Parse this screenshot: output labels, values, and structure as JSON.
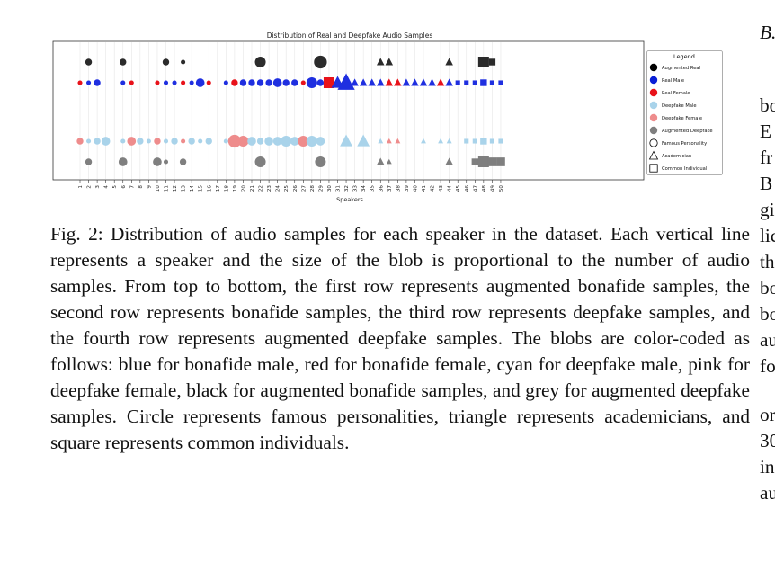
{
  "figure": {
    "number_label": "Fig. 2:",
    "caption": "Distribution of audio samples for each speaker in the dataset. Each vertical line represents a speaker and the size of the blob is proportional to the number of audio samples. From top to bottom, the first row represents augmented bonafide samples, the second row represents bonafide samples, the third row represents deepfake samples, and the fourth row represents augmented deepfake samples. The blobs are color-coded as follows: blue for bonafide male, red for bonafide female, cyan for deepfake male, pink for deepfake female, black for augmented bonafide samples, and grey for augmented deepfake samples. Circle represents famous personalities, triangle represents academicians, and square represents common individuals."
  },
  "chart_data": {
    "type": "scatter",
    "title": "Distribution of Real and Deepfake Audio Samples",
    "xlabel": "Speakers",
    "ylabel": "",
    "x_ticks": [
      "1",
      "2",
      "3",
      "4",
      "5",
      "6",
      "7",
      "8",
      "9",
      "10",
      "11",
      "12",
      "13",
      "14",
      "15",
      "16",
      "17",
      "18",
      "19",
      "20",
      "21",
      "22",
      "23",
      "24",
      "25",
      "26",
      "27",
      "28",
      "29",
      "30",
      "31",
      "32",
      "33",
      "34",
      "35",
      "36",
      "37",
      "38",
      "39",
      "40",
      "41",
      "42",
      "43",
      "44",
      "45",
      "46",
      "47",
      "48",
      "49",
      "50"
    ],
    "rows": [
      "Augmented Real",
      "Real",
      "Deepfake",
      "Augmented Deepfake"
    ],
    "legend": {
      "title": "Legend",
      "entries": [
        {
          "label": "Augmented Real",
          "color": "#000000",
          "marker": "circle"
        },
        {
          "label": "Real Male",
          "color": "#0a1fd6",
          "marker": "circle"
        },
        {
          "label": "Real Female",
          "color": "#e8121a",
          "marker": "circle"
        },
        {
          "label": "Deepfake Male",
          "color": "#a9d3ea",
          "marker": "circle"
        },
        {
          "label": "Deepfake Female",
          "color": "#ee8c8c",
          "marker": "circle"
        },
        {
          "label": "Augmented Deepfake",
          "color": "#7f7f7f",
          "marker": "circle"
        },
        {
          "label": "Famous Personality",
          "color": "#000000",
          "marker": "circle-outline"
        },
        {
          "label": "Academician",
          "color": "#000000",
          "marker": "triangle-outline"
        },
        {
          "label": "Common Individual",
          "color": "#000000",
          "marker": "square-outline"
        }
      ],
      "placement": "right"
    },
    "colors": {
      "aug_real": "#2b2b2b",
      "real_male": "#1f2fe0",
      "real_female": "#e8121a",
      "df_male": "#a9d3ea",
      "df_female": "#ee8c8c",
      "aug_df": "#7f7f7f"
    },
    "points": [
      {
        "row": 0,
        "x": 2,
        "size": 2,
        "cat": "aug_real",
        "marker": "circle"
      },
      {
        "row": 0,
        "x": 6,
        "size": 2,
        "cat": "aug_real",
        "marker": "circle"
      },
      {
        "row": 0,
        "x": 11,
        "size": 2,
        "cat": "aug_real",
        "marker": "circle"
      },
      {
        "row": 0,
        "x": 13,
        "size": 1,
        "cat": "aug_real",
        "marker": "circle"
      },
      {
        "row": 0,
        "x": 22,
        "size": 4,
        "cat": "aug_real",
        "marker": "circle"
      },
      {
        "row": 0,
        "x": 29,
        "size": 5,
        "cat": "aug_real",
        "marker": "circle"
      },
      {
        "row": 0,
        "x": 36,
        "size": 2,
        "cat": "aug_real",
        "marker": "triangle"
      },
      {
        "row": 0,
        "x": 37,
        "size": 2,
        "cat": "aug_real",
        "marker": "triangle"
      },
      {
        "row": 0,
        "x": 44,
        "size": 2,
        "cat": "aug_real",
        "marker": "triangle"
      },
      {
        "row": 0,
        "x": 48,
        "size": 4,
        "cat": "aug_real",
        "marker": "square"
      },
      {
        "row": 0,
        "x": 49,
        "size": 2,
        "cat": "aug_real",
        "marker": "square"
      },
      {
        "row": 1,
        "x": 1,
        "size": 1,
        "cat": "real_female",
        "marker": "circle"
      },
      {
        "row": 1,
        "x": 2,
        "size": 1,
        "cat": "real_male",
        "marker": "circle"
      },
      {
        "row": 1,
        "x": 3,
        "size": 2,
        "cat": "real_male",
        "marker": "circle"
      },
      {
        "row": 1,
        "x": 6,
        "size": 1,
        "cat": "real_male",
        "marker": "circle"
      },
      {
        "row": 1,
        "x": 7,
        "size": 1,
        "cat": "real_female",
        "marker": "circle"
      },
      {
        "row": 1,
        "x": 10,
        "size": 1,
        "cat": "real_female",
        "marker": "circle"
      },
      {
        "row": 1,
        "x": 11,
        "size": 1,
        "cat": "real_male",
        "marker": "circle"
      },
      {
        "row": 1,
        "x": 12,
        "size": 1,
        "cat": "real_male",
        "marker": "circle"
      },
      {
        "row": 1,
        "x": 13,
        "size": 1,
        "cat": "real_female",
        "marker": "circle"
      },
      {
        "row": 1,
        "x": 14,
        "size": 1,
        "cat": "real_male",
        "marker": "circle"
      },
      {
        "row": 1,
        "x": 15,
        "size": 3,
        "cat": "real_male",
        "marker": "circle"
      },
      {
        "row": 1,
        "x": 16,
        "size": 1,
        "cat": "real_female",
        "marker": "circle"
      },
      {
        "row": 1,
        "x": 18,
        "size": 1,
        "cat": "real_male",
        "marker": "circle"
      },
      {
        "row": 1,
        "x": 19,
        "size": 2,
        "cat": "real_female",
        "marker": "circle"
      },
      {
        "row": 1,
        "x": 20,
        "size": 2,
        "cat": "real_male",
        "marker": "circle"
      },
      {
        "row": 1,
        "x": 21,
        "size": 2,
        "cat": "real_male",
        "marker": "circle"
      },
      {
        "row": 1,
        "x": 22,
        "size": 2,
        "cat": "real_male",
        "marker": "circle"
      },
      {
        "row": 1,
        "x": 23,
        "size": 2,
        "cat": "real_male",
        "marker": "circle"
      },
      {
        "row": 1,
        "x": 24,
        "size": 3,
        "cat": "real_male",
        "marker": "circle"
      },
      {
        "row": 1,
        "x": 25,
        "size": 2,
        "cat": "real_male",
        "marker": "circle"
      },
      {
        "row": 1,
        "x": 26,
        "size": 2,
        "cat": "real_male",
        "marker": "circle"
      },
      {
        "row": 1,
        "x": 27,
        "size": 1,
        "cat": "real_female",
        "marker": "circle"
      },
      {
        "row": 1,
        "x": 28,
        "size": 4,
        "cat": "real_male",
        "marker": "circle"
      },
      {
        "row": 1,
        "x": 29,
        "size": 2,
        "cat": "real_male",
        "marker": "circle"
      },
      {
        "row": 1,
        "x": 30,
        "size": 4,
        "cat": "real_female",
        "marker": "square"
      },
      {
        "row": 1,
        "x": 31,
        "size": 4,
        "cat": "real_male",
        "marker": "triangle"
      },
      {
        "row": 1,
        "x": 32,
        "size": 6,
        "cat": "real_male",
        "marker": "triangle"
      },
      {
        "row": 1,
        "x": 33,
        "size": 2,
        "cat": "real_male",
        "marker": "triangle"
      },
      {
        "row": 1,
        "x": 34,
        "size": 2,
        "cat": "real_male",
        "marker": "triangle"
      },
      {
        "row": 1,
        "x": 35,
        "size": 2,
        "cat": "real_male",
        "marker": "triangle"
      },
      {
        "row": 1,
        "x": 36,
        "size": 2,
        "cat": "real_male",
        "marker": "triangle"
      },
      {
        "row": 1,
        "x": 37,
        "size": 2,
        "cat": "real_female",
        "marker": "triangle"
      },
      {
        "row": 1,
        "x": 38,
        "size": 2,
        "cat": "real_female",
        "marker": "triangle"
      },
      {
        "row": 1,
        "x": 39,
        "size": 2,
        "cat": "real_male",
        "marker": "triangle"
      },
      {
        "row": 1,
        "x": 40,
        "size": 2,
        "cat": "real_male",
        "marker": "triangle"
      },
      {
        "row": 1,
        "x": 41,
        "size": 2,
        "cat": "real_male",
        "marker": "triangle"
      },
      {
        "row": 1,
        "x": 42,
        "size": 2,
        "cat": "real_male",
        "marker": "triangle"
      },
      {
        "row": 1,
        "x": 43,
        "size": 2,
        "cat": "real_female",
        "marker": "triangle"
      },
      {
        "row": 1,
        "x": 44,
        "size": 2,
        "cat": "real_male",
        "marker": "triangle"
      },
      {
        "row": 1,
        "x": 45,
        "size": 1,
        "cat": "real_male",
        "marker": "square"
      },
      {
        "row": 1,
        "x": 46,
        "size": 1,
        "cat": "real_male",
        "marker": "square"
      },
      {
        "row": 1,
        "x": 47,
        "size": 1,
        "cat": "real_male",
        "marker": "square"
      },
      {
        "row": 1,
        "x": 48,
        "size": 2,
        "cat": "real_male",
        "marker": "square"
      },
      {
        "row": 1,
        "x": 49,
        "size": 1,
        "cat": "real_male",
        "marker": "square"
      },
      {
        "row": 1,
        "x": 50,
        "size": 1,
        "cat": "real_male",
        "marker": "square"
      },
      {
        "row": 2,
        "x": 1,
        "size": 2,
        "cat": "df_female",
        "marker": "circle"
      },
      {
        "row": 2,
        "x": 2,
        "size": 1,
        "cat": "df_male",
        "marker": "circle"
      },
      {
        "row": 2,
        "x": 3,
        "size": 2,
        "cat": "df_male",
        "marker": "circle"
      },
      {
        "row": 2,
        "x": 4,
        "size": 3,
        "cat": "df_male",
        "marker": "circle"
      },
      {
        "row": 2,
        "x": 6,
        "size": 1,
        "cat": "df_male",
        "marker": "circle"
      },
      {
        "row": 2,
        "x": 7,
        "size": 3,
        "cat": "df_female",
        "marker": "circle"
      },
      {
        "row": 2,
        "x": 8,
        "size": 2,
        "cat": "df_male",
        "marker": "circle"
      },
      {
        "row": 2,
        "x": 9,
        "size": 1,
        "cat": "df_male",
        "marker": "circle"
      },
      {
        "row": 2,
        "x": 10,
        "size": 2,
        "cat": "df_female",
        "marker": "circle"
      },
      {
        "row": 2,
        "x": 11,
        "size": 1,
        "cat": "df_male",
        "marker": "circle"
      },
      {
        "row": 2,
        "x": 12,
        "size": 2,
        "cat": "df_male",
        "marker": "circle"
      },
      {
        "row": 2,
        "x": 13,
        "size": 1,
        "cat": "df_female",
        "marker": "circle"
      },
      {
        "row": 2,
        "x": 14,
        "size": 2,
        "cat": "df_male",
        "marker": "circle"
      },
      {
        "row": 2,
        "x": 15,
        "size": 1,
        "cat": "df_male",
        "marker": "circle"
      },
      {
        "row": 2,
        "x": 16,
        "size": 2,
        "cat": "df_male",
        "marker": "circle"
      },
      {
        "row": 2,
        "x": 18,
        "size": 1,
        "cat": "df_male",
        "marker": "circle"
      },
      {
        "row": 2,
        "x": 19,
        "size": 5,
        "cat": "df_female",
        "marker": "circle"
      },
      {
        "row": 2,
        "x": 20,
        "size": 4,
        "cat": "df_female",
        "marker": "circle"
      },
      {
        "row": 2,
        "x": 21,
        "size": 3,
        "cat": "df_male",
        "marker": "circle"
      },
      {
        "row": 2,
        "x": 22,
        "size": 2,
        "cat": "df_male",
        "marker": "circle"
      },
      {
        "row": 2,
        "x": 23,
        "size": 3,
        "cat": "df_male",
        "marker": "circle"
      },
      {
        "row": 2,
        "x": 24,
        "size": 3,
        "cat": "df_male",
        "marker": "circle"
      },
      {
        "row": 2,
        "x": 25,
        "size": 4,
        "cat": "df_male",
        "marker": "circle"
      },
      {
        "row": 2,
        "x": 26,
        "size": 3,
        "cat": "df_male",
        "marker": "circle"
      },
      {
        "row": 2,
        "x": 27,
        "size": 4,
        "cat": "df_female",
        "marker": "circle"
      },
      {
        "row": 2,
        "x": 28,
        "size": 4,
        "cat": "df_male",
        "marker": "circle"
      },
      {
        "row": 2,
        "x": 29,
        "size": 3,
        "cat": "df_male",
        "marker": "circle"
      },
      {
        "row": 2,
        "x": 32,
        "size": 4,
        "cat": "df_male",
        "marker": "triangle"
      },
      {
        "row": 2,
        "x": 34,
        "size": 4,
        "cat": "df_male",
        "marker": "triangle"
      },
      {
        "row": 2,
        "x": 36,
        "size": 1,
        "cat": "df_male",
        "marker": "triangle"
      },
      {
        "row": 2,
        "x": 37,
        "size": 1,
        "cat": "df_female",
        "marker": "triangle"
      },
      {
        "row": 2,
        "x": 38,
        "size": 1,
        "cat": "df_female",
        "marker": "triangle"
      },
      {
        "row": 2,
        "x": 41,
        "size": 1,
        "cat": "df_male",
        "marker": "triangle"
      },
      {
        "row": 2,
        "x": 43,
        "size": 1,
        "cat": "df_male",
        "marker": "triangle"
      },
      {
        "row": 2,
        "x": 44,
        "size": 1,
        "cat": "df_male",
        "marker": "triangle"
      },
      {
        "row": 2,
        "x": 46,
        "size": 1,
        "cat": "df_male",
        "marker": "square"
      },
      {
        "row": 2,
        "x": 47,
        "size": 1,
        "cat": "df_male",
        "marker": "square"
      },
      {
        "row": 2,
        "x": 48,
        "size": 2,
        "cat": "df_male",
        "marker": "square"
      },
      {
        "row": 2,
        "x": 49,
        "size": 1,
        "cat": "df_male",
        "marker": "square"
      },
      {
        "row": 2,
        "x": 50,
        "size": 1,
        "cat": "df_male",
        "marker": "square"
      },
      {
        "row": 3,
        "x": 2,
        "size": 2,
        "cat": "aug_df",
        "marker": "circle"
      },
      {
        "row": 3,
        "x": 6,
        "size": 3,
        "cat": "aug_df",
        "marker": "circle"
      },
      {
        "row": 3,
        "x": 10,
        "size": 3,
        "cat": "aug_df",
        "marker": "circle"
      },
      {
        "row": 3,
        "x": 11,
        "size": 1,
        "cat": "aug_df",
        "marker": "circle"
      },
      {
        "row": 3,
        "x": 13,
        "size": 2,
        "cat": "aug_df",
        "marker": "circle"
      },
      {
        "row": 3,
        "x": 22,
        "size": 4,
        "cat": "aug_df",
        "marker": "circle"
      },
      {
        "row": 3,
        "x": 29,
        "size": 4,
        "cat": "aug_df",
        "marker": "circle"
      },
      {
        "row": 3,
        "x": 36,
        "size": 2,
        "cat": "aug_df",
        "marker": "triangle"
      },
      {
        "row": 3,
        "x": 37,
        "size": 1,
        "cat": "aug_df",
        "marker": "triangle"
      },
      {
        "row": 3,
        "x": 44,
        "size": 2,
        "cat": "aug_df",
        "marker": "triangle"
      },
      {
        "row": 3,
        "x": 47,
        "size": 2,
        "cat": "aug_df",
        "marker": "square"
      },
      {
        "row": 3,
        "x": 48,
        "size": 4,
        "cat": "aug_df",
        "marker": "square"
      },
      {
        "row": 3,
        "x": 49,
        "size": 3,
        "cat": "aug_df",
        "marker": "square"
      },
      {
        "row": 3,
        "x": 50,
        "size": 3,
        "cat": "aug_df",
        "marker": "square"
      }
    ]
  },
  "right_column": {
    "lines": [
      "B.",
      "bo",
      "E",
      "fr",
      "B",
      "gi",
      "lic",
      "th",
      "bo",
      "bo",
      "au",
      "fo",
      "or",
      "30",
      "in",
      "au"
    ]
  }
}
